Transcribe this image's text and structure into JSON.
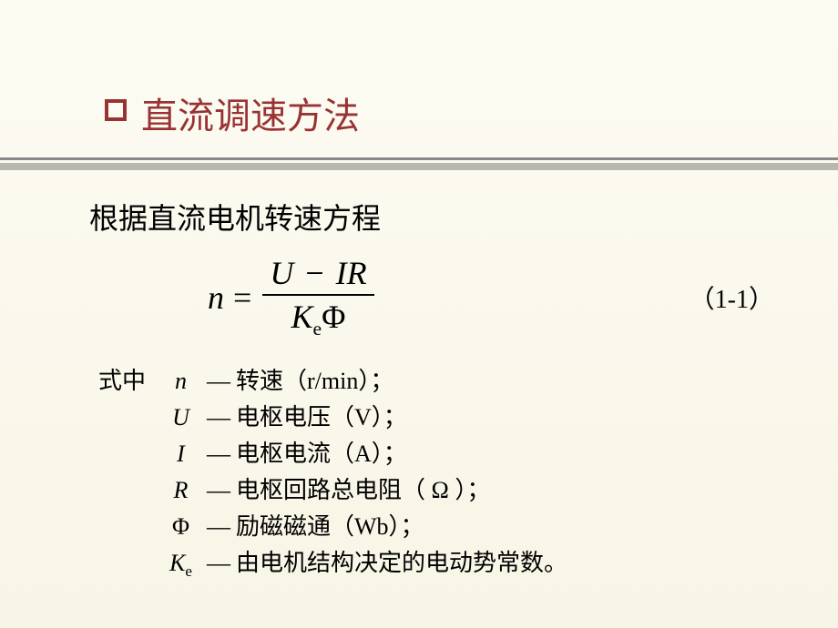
{
  "title": "直流调速方法",
  "subtitle": "根据直流电机转速方程",
  "equation": {
    "lhs_var": "n",
    "equals": "=",
    "numerator_u": "U",
    "numerator_minus": "−",
    "numerator_ir": "IR",
    "denominator_k": "K",
    "denominator_sub": "e",
    "denominator_phi": "Φ",
    "number": "（1-1）"
  },
  "legend": {
    "prefix": "式中",
    "rows": [
      {
        "symbol": "n",
        "sub": "",
        "italic": true,
        "dash": "—",
        "desc": "转速（r/min）；"
      },
      {
        "symbol": "U",
        "sub": "",
        "italic": true,
        "dash": "—",
        "desc": "电枢电压（V）；"
      },
      {
        "symbol": "I",
        "sub": "",
        "italic": true,
        "dash": "—",
        "desc": "电枢电流（A）；"
      },
      {
        "symbol": "R",
        "sub": "",
        "italic": true,
        "dash": "—",
        "desc": "电枢回路总电阻（ Ω ）；"
      },
      {
        "symbol": "Φ",
        "sub": "",
        "italic": false,
        "dash": "—",
        "desc": "励磁磁通（Wb）；"
      },
      {
        "symbol": "K",
        "sub": "e",
        "italic": true,
        "dash": "—",
        "desc": "由电机结构决定的电动势常数。"
      }
    ]
  },
  "colors": {
    "title_color": "#993333",
    "text_color": "#000000",
    "bg_top": "#fdfcf3",
    "bg_bottom": "#f8f5e6",
    "divider_dark": "#888888",
    "divider_light": "#b8b8b0"
  },
  "fonts": {
    "title_size": 40,
    "subtitle_size": 32,
    "equation_size": 36,
    "legend_size": 26,
    "eqnum_size": 28
  }
}
